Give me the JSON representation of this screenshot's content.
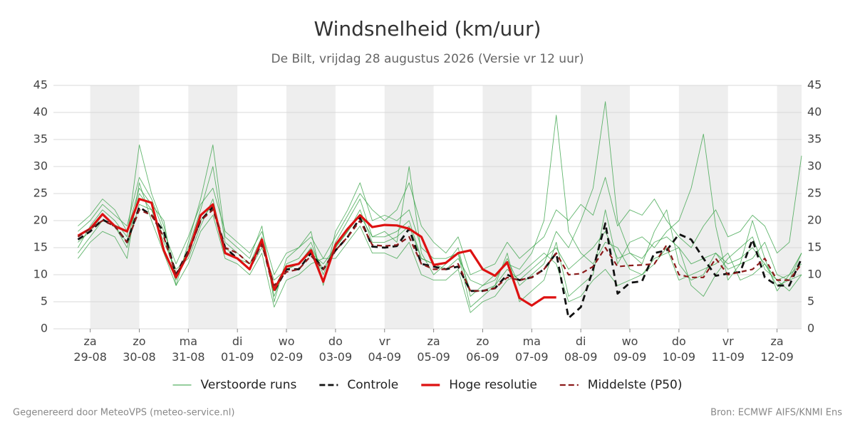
{
  "chart_data": {
    "type": "line",
    "title": "Windsnelheid (km/uur)",
    "subtitle": "De Bilt, vrijdag 28 augustus 2026 (Versie vr 12 uur)",
    "footer_left": "Gegenereerd door MeteoVPS (meteo-service.nl)",
    "footer_right": "Bron: ECMWF AIFS/KNMI Ens",
    "xlim": [
      -0.75,
      14.5
    ],
    "xticks": [
      {
        "value": 0,
        "label": "za\n29-08"
      },
      {
        "value": 1,
        "label": "zo\n30-08"
      },
      {
        "value": 2,
        "label": "ma\n31-08"
      },
      {
        "value": 3,
        "label": "di\n01-09"
      },
      {
        "value": 4,
        "label": "wo\n02-09"
      },
      {
        "value": 5,
        "label": "do\n03-09"
      },
      {
        "value": 6,
        "label": "vr\n04-09"
      },
      {
        "value": 7,
        "label": "za\n05-09"
      },
      {
        "value": 8,
        "label": "zo\n06-09"
      },
      {
        "value": 9,
        "label": "ma\n07-09"
      },
      {
        "value": 10,
        "label": "di\n08-09"
      },
      {
        "value": 11,
        "label": "wo\n09-09"
      },
      {
        "value": 12,
        "label": "do\n10-09"
      },
      {
        "value": 13,
        "label": "vr\n11-09"
      },
      {
        "value": 14,
        "label": "za\n12-09"
      }
    ],
    "ylim": [
      0,
      45
    ],
    "yticks": [
      0,
      5,
      10,
      15,
      20,
      25,
      30,
      35,
      40,
      45
    ],
    "grid": true,
    "right_axis": true,
    "day_shading": true,
    "legend": "bottom",
    "x": [
      -0.25,
      0,
      0.25,
      0.5,
      0.75,
      1,
      1.25,
      1.5,
      1.75,
      2,
      2.25,
      2.5,
      2.75,
      3,
      3.25,
      3.5,
      3.75,
      4,
      4.25,
      4.5,
      4.75,
      5,
      5.25,
      5.5,
      5.75,
      6,
      6.25,
      6.5,
      6.75,
      7,
      7.25,
      7.5,
      7.75,
      8,
      8.25,
      8.5,
      8.75,
      9,
      9.25,
      9.5,
      9.75,
      10,
      10.25,
      10.5,
      10.75,
      11,
      11.25,
      11.5,
      11.75,
      12,
      12.25,
      12.5,
      12.75,
      13,
      13.25,
      13.5,
      13.75,
      14,
      14.25,
      14.5
    ],
    "ensemble": {
      "name": "Verstoorde runs",
      "color": "#2e9e3e",
      "members": [
        [
          15,
          19,
          22,
          20,
          17,
          34,
          25,
          19,
          9,
          15,
          22,
          30,
          16,
          14,
          12,
          17,
          6,
          12,
          13,
          16,
          10,
          16,
          20,
          24,
          17,
          18,
          16,
          30,
          14,
          10,
          12,
          15,
          6,
          8,
          9,
          13,
          8,
          10,
          12,
          18,
          15,
          20,
          26,
          42,
          20,
          14,
          12,
          18,
          22,
          12,
          9,
          10,
          14,
          11,
          12,
          13,
          16,
          10,
          9,
          14
        ],
        [
          14,
          17,
          20,
          19,
          15,
          23,
          22,
          16,
          11,
          13,
          19,
          24,
          14,
          13,
          11,
          15,
          9,
          11,
          12,
          14,
          12,
          15,
          18,
          22,
          16,
          16,
          17,
          19,
          13,
          12,
          11,
          13,
          9,
          8,
          10,
          12,
          11,
          14,
          20,
          39.5,
          18,
          14,
          12,
          16,
          15,
          11,
          10,
          12,
          15,
          9,
          10,
          11,
          12,
          14,
          9,
          10,
          12,
          8,
          9,
          10
        ],
        [
          19,
          21,
          24,
          22,
          18,
          26,
          23,
          20,
          8,
          16,
          24,
          34,
          17,
          15,
          13,
          19,
          5,
          13,
          15,
          18,
          8,
          18,
          22,
          27,
          20,
          21,
          20,
          22,
          15,
          13,
          13,
          14,
          4,
          6,
          8,
          14,
          5,
          7,
          9,
          16,
          6,
          8,
          10,
          22,
          12,
          16,
          17,
          15,
          18,
          20,
          26,
          36,
          19,
          9,
          12,
          20,
          13,
          7,
          10,
          12
        ],
        [
          13,
          16,
          18,
          17,
          13,
          27,
          20,
          14,
          8,
          12,
          18,
          21,
          13,
          12,
          10,
          14,
          4,
          9,
          10,
          12,
          13,
          13,
          16,
          19,
          14,
          14,
          13,
          16,
          10,
          9,
          9,
          11,
          3,
          5,
          6,
          9,
          10,
          12,
          14,
          12,
          5,
          6,
          9,
          11,
          8,
          9,
          10,
          13,
          14,
          15,
          8,
          6,
          10,
          13,
          15,
          17,
          11,
          9,
          7,
          10
        ],
        [
          18,
          20,
          23,
          21,
          19,
          28,
          24,
          18,
          12,
          17,
          23,
          26,
          18,
          16,
          14,
          18,
          10,
          14,
          15,
          17,
          13,
          17,
          21,
          25,
          22,
          20,
          22,
          27,
          19,
          16,
          14,
          17,
          10,
          11,
          12,
          16,
          13,
          15,
          17,
          22,
          20,
          23,
          21,
          28,
          19,
          22,
          21,
          24,
          20,
          17,
          15,
          19,
          22,
          17,
          18,
          21,
          19,
          14,
          16,
          32
        ],
        [
          16,
          18,
          21,
          19,
          16,
          25,
          22,
          17,
          10,
          14,
          20,
          23,
          15,
          13,
          12,
          16,
          7,
          11,
          12,
          15,
          11,
          15,
          18,
          21,
          17,
          17,
          18,
          20,
          13,
          12,
          12,
          14,
          7,
          7,
          8,
          11,
          9,
          11,
          13,
          15,
          11,
          13,
          15,
          18,
          13,
          14,
          13,
          16,
          17,
          15,
          12,
          13,
          14,
          12,
          13,
          15,
          12,
          9,
          10,
          14
        ]
      ]
    },
    "series": [
      {
        "name": "Controle",
        "color": "#111111",
        "dash": true,
        "values": [
          16.5,
          18,
          20.2,
          19,
          16,
          22.5,
          21,
          18,
          10,
          14.5,
          20,
          22.5,
          15,
          13,
          11,
          16,
          7,
          11,
          11,
          14,
          11,
          14.5,
          17,
          20.5,
          15.2,
          15,
          15.3,
          18.5,
          12,
          11.5,
          11,
          11.5,
          7,
          7,
          7.5,
          10,
          9,
          9.5,
          11,
          14,
          2,
          4,
          11,
          19.5,
          6.5,
          8.5,
          8.8,
          14,
          14.5,
          17.5,
          16.5,
          13,
          9.8,
          10.2,
          10.5,
          16.5,
          9.5,
          8,
          8,
          13
        ]
      },
      {
        "name": "Hoge resolutie",
        "color": "#dd1111",
        "dash": false,
        "values": [
          17.2,
          18.5,
          21.2,
          19,
          18,
          24,
          23.3,
          14.5,
          9.5,
          14,
          21,
          23,
          14,
          13,
          11,
          16.5,
          7.2,
          11.5,
          12,
          14.5,
          8.7,
          15.5,
          18.5,
          21,
          18.8,
          19.2,
          19.1,
          18.5,
          17,
          11.8,
          12.2,
          14,
          14.5,
          11,
          9.8,
          12.3,
          5.7,
          4.3,
          5.8,
          5.8,
          null,
          null,
          null,
          null,
          null,
          null,
          null,
          null,
          null,
          null,
          null,
          null,
          null,
          null,
          null,
          null,
          null,
          null,
          null,
          null
        ]
      },
      {
        "name": "Middelste (P50)",
        "color": "#8b1a1a",
        "dash": true,
        "values": [
          17,
          18.5,
          20,
          19,
          16,
          22,
          21,
          17,
          10,
          14,
          20,
          22,
          15,
          14,
          12,
          15.5,
          8,
          10.5,
          11,
          13.5,
          11,
          14.5,
          17,
          20,
          15.5,
          15.3,
          15.5,
          17,
          12,
          11,
          11,
          12,
          7,
          7,
          7.5,
          9.5,
          9,
          9.5,
          11,
          14,
          10,
          10.2,
          11.5,
          15,
          11.5,
          11.7,
          11.8,
          12,
          15.5,
          10,
          9.5,
          9.5,
          13,
          10,
          10.5,
          11,
          13,
          9,
          9,
          12
        ]
      }
    ]
  }
}
